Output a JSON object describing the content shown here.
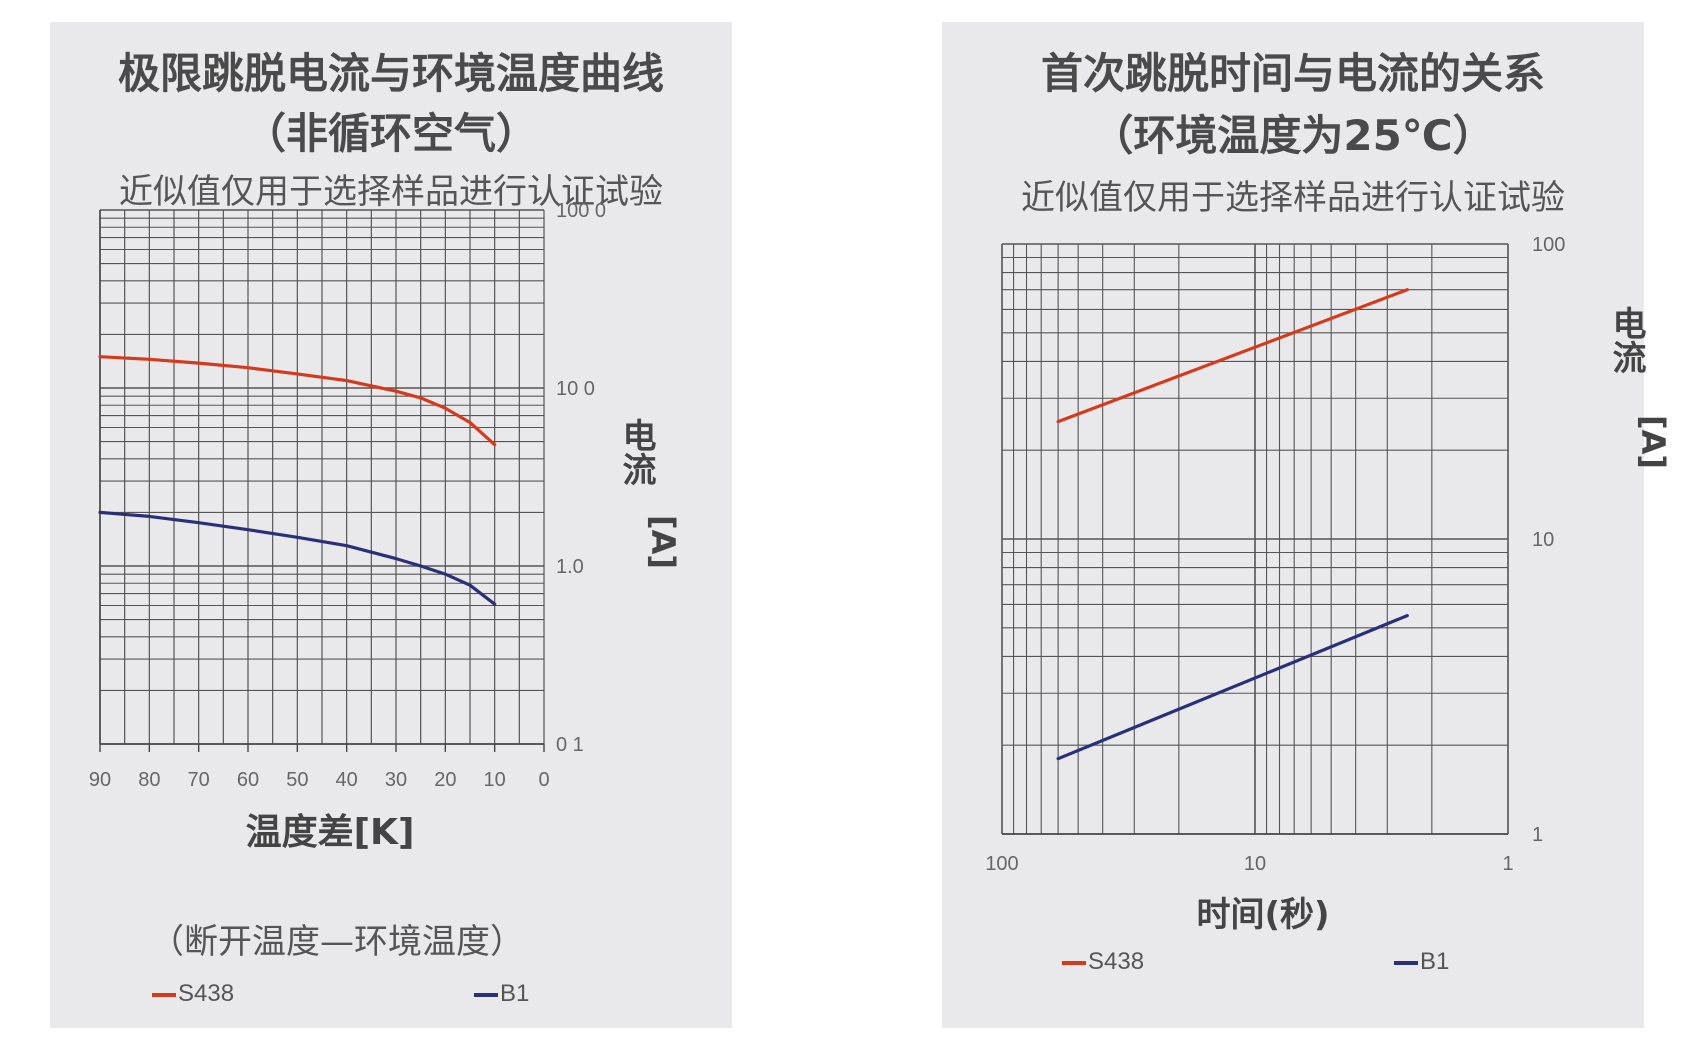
{
  "colors": {
    "s438": "#d7391c",
    "b1": "#2b2f78",
    "grid": "#555555",
    "panel": "#e9e9ec"
  },
  "chart_data": [
    {
      "type": "line",
      "title": "极限跳脱电流与环境温度曲线",
      "subtitle": "（非循环空气）",
      "note": "近似值仅用于选择样品进行认证试验",
      "xlabel": "温度差[K]",
      "xlabel_sub": "（断开温度—环境温度）",
      "ylabel": "电流 [A]",
      "xlim": [
        90,
        0
      ],
      "ylim": [
        0.1,
        100
      ],
      "yscale": "log",
      "xticks": [
        "90",
        "80",
        "70",
        "60",
        "50",
        "40",
        "30",
        "20",
        "10",
        "0"
      ],
      "yticks": [
        "100 0",
        "10 0",
        "1.0",
        "0 1"
      ],
      "grid": true,
      "legend": "bottom",
      "series": [
        {
          "name": "S438",
          "color": "#d7391c",
          "x": [
            90,
            80,
            70,
            60,
            50,
            40,
            30,
            25,
            20,
            15,
            10
          ],
          "y": [
            15,
            14.5,
            13.8,
            13,
            12,
            11,
            9.6,
            8.8,
            7.7,
            6.4,
            4.8
          ]
        },
        {
          "name": "B1",
          "color": "#2b2f78",
          "x": [
            90,
            80,
            70,
            60,
            50,
            40,
            30,
            25,
            20,
            15,
            10
          ],
          "y": [
            2.0,
            1.9,
            1.75,
            1.6,
            1.45,
            1.3,
            1.1,
            1.0,
            0.9,
            0.78,
            0.61
          ]
        }
      ]
    },
    {
      "type": "line",
      "title": "首次跳脱时间与电流的关系",
      "subtitle": "（环境温度为25℃）",
      "note": "近似值仅用于选择样品进行认证试验",
      "xlabel": "时间(秒)",
      "ylabel": "电流 [A]",
      "xlim": [
        100,
        1
      ],
      "ylim": [
        1,
        100
      ],
      "xscale": "log",
      "yscale": "log",
      "xticks": [
        "100",
        "10",
        "1"
      ],
      "yticks": [
        "100",
        "10",
        "1"
      ],
      "grid": true,
      "legend": "bottom",
      "series": [
        {
          "name": "S438",
          "color": "#d7391c",
          "x": [
            60,
            2.5
          ],
          "y": [
            25,
            70
          ]
        },
        {
          "name": "B1",
          "color": "#2b2f78",
          "x": [
            60,
            2.5
          ],
          "y": [
            1.8,
            5.5
          ]
        }
      ]
    }
  ]
}
